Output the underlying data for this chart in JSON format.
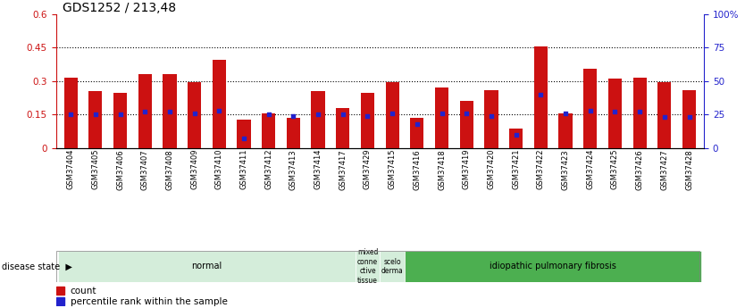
{
  "title": "GDS1252 / 213,48",
  "samples": [
    "GSM37404",
    "GSM37405",
    "GSM37406",
    "GSM37407",
    "GSM37408",
    "GSM37409",
    "GSM37410",
    "GSM37411",
    "GSM37412",
    "GSM37413",
    "GSM37414",
    "GSM37417",
    "GSM37429",
    "GSM37415",
    "GSM37416",
    "GSM37418",
    "GSM37419",
    "GSM37420",
    "GSM37421",
    "GSM37422",
    "GSM37423",
    "GSM37424",
    "GSM37425",
    "GSM37426",
    "GSM37427",
    "GSM37428"
  ],
  "count": [
    0.315,
    0.255,
    0.245,
    0.33,
    0.33,
    0.295,
    0.395,
    0.125,
    0.155,
    0.135,
    0.255,
    0.18,
    0.245,
    0.295,
    0.135,
    0.27,
    0.21,
    0.26,
    0.085,
    0.455,
    0.155,
    0.355,
    0.31,
    0.315,
    0.295,
    0.26
  ],
  "percentile": [
    25,
    25,
    25,
    27,
    27,
    26,
    28,
    7,
    25,
    24,
    25,
    25,
    24,
    26,
    18,
    26,
    26,
    24,
    10,
    40,
    26,
    28,
    27,
    27,
    23,
    23
  ],
  "disease_groups": [
    {
      "label": "normal",
      "start": 0,
      "end": 12,
      "color": "#d4edda",
      "text_color": "#000000"
    },
    {
      "label": "mixed\nconne\nctive\ntissue",
      "start": 12,
      "end": 13,
      "color": "#d4edda",
      "text_color": "#000000"
    },
    {
      "label": "scelo\nderma",
      "start": 13,
      "end": 14,
      "color": "#d4edda",
      "text_color": "#000000"
    },
    {
      "label": "idiopathic pulmonary fibrosis",
      "start": 14,
      "end": 26,
      "color": "#4caf50",
      "text_color": "#000000"
    }
  ],
  "left_yticks": [
    0,
    0.15,
    0.3,
    0.45,
    0.6
  ],
  "right_yticks": [
    0,
    25,
    50,
    75,
    100
  ],
  "right_ytick_labels": [
    "0",
    "25",
    "50",
    "75",
    "100%"
  ],
  "bar_color": "#cc1111",
  "percentile_color": "#2222cc",
  "bg_color": "#ffffff",
  "left_axis_color": "#cc1111",
  "right_axis_color": "#2222cc",
  "label_fontsize": 7.0,
  "tick_fontsize": 7.5,
  "title_fontsize": 10
}
